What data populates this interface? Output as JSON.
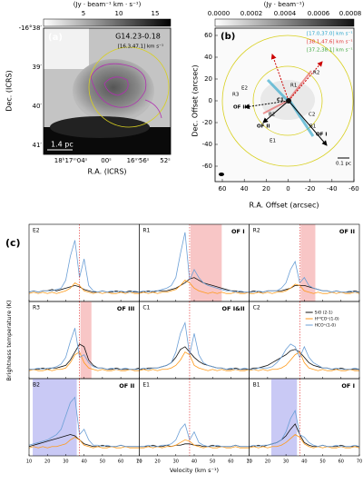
{
  "panel_a": {
    "label": "(a)",
    "colorbar_label": "(Jy · beam⁻¹ km · s⁻¹)",
    "colorbar_ticks": [
      "5",
      "10",
      "15"
    ],
    "source": "G14.23-0.18",
    "range": "[16.3,47.1] km s⁻¹",
    "scale": "1.4 pc",
    "ylabel": "Dec. (ICRS)",
    "xlabel": "R.A. (ICRS)",
    "yticks": [
      "-16°38′",
      "39′",
      "40′",
      "41′"
    ],
    "xticks": [
      "18ʰ17ᵐ04ˢ",
      "00ˢ",
      "16ᵐ56ˢ",
      "52ˢ"
    ]
  },
  "panel_b": {
    "label": "(b)",
    "colorbar_label": "(Jy · beam⁻¹)",
    "colorbar_ticks": [
      "0.0000",
      "0.0002",
      "0.0004",
      "0.0006",
      "0.0008"
    ],
    "legend": [
      {
        "text": "[17.0,37.0] km s⁻¹",
        "color": "#1fa0c8"
      },
      {
        "text": "[38.1,47.6] km s⁻¹",
        "color": "#e03030"
      },
      {
        "text": "[37.2,38.1] km s⁻¹",
        "color": "#3aa53a"
      }
    ],
    "ylabel": "Dec. Offset (arcsec)",
    "xlabel": "R.A. Offset (arcsec)",
    "xticks": [
      "60",
      "40",
      "20",
      "0",
      "-20",
      "-40",
      "-60"
    ],
    "yticks": [
      "60",
      "40",
      "20",
      "0",
      "-20",
      "-40",
      "-60"
    ],
    "sources": [
      "E2",
      "R1",
      "R2",
      "R3",
      "C1",
      "C2",
      "B2",
      "B1",
      "E1"
    ],
    "outflows": [
      "OF I",
      "OF II",
      "OF III"
    ],
    "scale": "0.1 pc"
  },
  "panel_c": {
    "label": "(c)",
    "ylabel": "Brightness temperature (K)",
    "xlabel": "Velocity (km s⁻¹)",
    "x": [
      10,
      12.5,
      15,
      17.5,
      20,
      22.5,
      25,
      27.5,
      30,
      32.5,
      35,
      37.5,
      40,
      42.5,
      45,
      47.5,
      50,
      52.5,
      55,
      57.5,
      60,
      62.5,
      65,
      67.5,
      70
    ],
    "xlim": [
      10,
      70
    ],
    "xticks": [
      10,
      20,
      30,
      40,
      50,
      60,
      70
    ],
    "ylim": [
      -0.3,
      2.6
    ],
    "vsys": 37.5,
    "series": [
      {
        "name": "SiO (2-1)",
        "color": "#111111"
      },
      {
        "name": "H¹³CO⁺(1-0)",
        "color": "#ff9a1a"
      },
      {
        "name": "HCO⁺(1-0)",
        "color": "#6b9fd6"
      }
    ],
    "panels": [
      {
        "name": "E2",
        "spectra": [
          [
            0.05,
            0.1,
            0.05,
            0.1,
            0.1,
            0.15,
            0.1,
            0.15,
            0.2,
            0.25,
            0.3,
            0.25,
            0.15,
            0.1,
            0.05,
            0.05,
            0.1,
            0.05,
            0.05,
            0.1,
            0.05,
            0.05,
            0.1,
            0.05,
            0.05
          ],
          [
            0,
            0.05,
            0,
            0.05,
            0,
            0.05,
            0,
            0.05,
            0.1,
            0.2,
            0.4,
            0.3,
            0.1,
            0.05,
            0,
            0.05,
            0,
            0.05,
            0,
            0,
            0.05,
            0,
            0.05,
            0,
            0
          ],
          [
            0.05,
            0.1,
            0.05,
            0.1,
            0.1,
            0.1,
            0.15,
            0.2,
            0.5,
            1.4,
            2.0,
            0.6,
            1.3,
            0.3,
            0.1,
            0.05,
            0.1,
            0.05,
            0.1,
            0.05,
            0.1,
            0.05,
            0.05,
            0.1,
            0.05
          ]
        ]
      },
      {
        "name": "R1",
        "outflow": "OF I",
        "shade": [
          38,
          55
        ],
        "shade_color": "#f6b8b8",
        "spectra": [
          [
            0.05,
            0.05,
            0.1,
            0.05,
            0.1,
            0.1,
            0.1,
            0.15,
            0.2,
            0.3,
            0.4,
            0.55,
            0.6,
            0.5,
            0.4,
            0.35,
            0.3,
            0.25,
            0.2,
            0.15,
            0.1,
            0.1,
            0.05,
            0.05,
            0.05
          ],
          [
            0,
            0.05,
            0,
            0.05,
            0,
            0.05,
            0.05,
            0.1,
            0.15,
            0.3,
            0.5,
            0.4,
            0.2,
            0.1,
            0.05,
            0,
            0.05,
            0,
            0.05,
            0,
            0,
            0.05,
            0,
            0,
            0.05
          ],
          [
            0.05,
            0.1,
            0.05,
            0.1,
            0.1,
            0.15,
            0.2,
            0.3,
            0.6,
            1.5,
            2.3,
            0.5,
            0.9,
            0.6,
            0.4,
            0.3,
            0.25,
            0.2,
            0.15,
            0.1,
            0.1,
            0.05,
            0.1,
            0.05,
            0.05
          ]
        ]
      },
      {
        "name": "R2",
        "outflow": "OF II",
        "shade": [
          38,
          46
        ],
        "shade_color": "#f6b8b8",
        "spectra": [
          [
            0.05,
            0.1,
            0.05,
            0.05,
            0.1,
            0.1,
            0.1,
            0.1,
            0.15,
            0.2,
            0.3,
            0.3,
            0.3,
            0.25,
            0.2,
            0.15,
            0.1,
            0.1,
            0.05,
            0.1,
            0.05,
            0.05,
            0.05,
            0.1,
            0.05
          ],
          [
            0,
            0,
            0.05,
            0,
            0.05,
            0,
            0.05,
            0.05,
            0.1,
            0.2,
            0.35,
            0.3,
            0.1,
            0.05,
            0,
            0.05,
            0,
            0,
            0.05,
            0,
            0.05,
            0,
            0,
            0.05,
            0
          ],
          [
            0.05,
            0.05,
            0.1,
            0.05,
            0.1,
            0.1,
            0.1,
            0.2,
            0.4,
            0.9,
            1.2,
            0.4,
            0.6,
            0.3,
            0.2,
            0.15,
            0.1,
            0.1,
            0.05,
            0.1,
            0.05,
            0.05,
            0.1,
            0.05,
            0.05
          ]
        ]
      },
      {
        "name": "R3",
        "outflow": "OF III",
        "shade": [
          38,
          44
        ],
        "shade_color": "#f6b8b8",
        "spectra": [
          [
            0.05,
            0.05,
            0.05,
            0.1,
            0.05,
            0.1,
            0.1,
            0.15,
            0.2,
            0.4,
            0.7,
            1.0,
            0.9,
            0.4,
            0.2,
            0.1,
            0.1,
            0.05,
            0.05,
            0.1,
            0.05,
            0.05,
            0.05,
            0.05,
            0.1
          ],
          [
            0,
            0.05,
            0,
            0,
            0.05,
            0,
            0.05,
            0.05,
            0.1,
            0.3,
            0.6,
            0.7,
            0.3,
            0.1,
            0.05,
            0,
            0.05,
            0,
            0,
            0.05,
            0,
            0,
            0.05,
            0,
            0
          ],
          [
            0.05,
            0.05,
            0.1,
            0.05,
            0.1,
            0.1,
            0.15,
            0.25,
            0.5,
            1.1,
            1.6,
            0.5,
            0.6,
            0.3,
            0.15,
            0.1,
            0.1,
            0.05,
            0.1,
            0.05,
            0.05,
            0.1,
            0.05,
            0.05,
            0.05
          ]
        ]
      },
      {
        "name": "C1",
        "outflow": "OF I&II",
        "spectra": [
          [
            0.05,
            0.05,
            0.1,
            0.1,
            0.1,
            0.15,
            0.2,
            0.3,
            0.5,
            0.8,
            0.9,
            0.7,
            0.5,
            0.35,
            0.25,
            0.2,
            0.15,
            0.1,
            0.1,
            0.05,
            0.05,
            0.1,
            0.05,
            0.05,
            0.05
          ],
          [
            0,
            0.05,
            0,
            0.05,
            0,
            0.05,
            0.05,
            0.1,
            0.2,
            0.4,
            0.7,
            0.6,
            0.2,
            0.1,
            0.05,
            0,
            0.05,
            0,
            0.05,
            0,
            0,
            0.05,
            0,
            0,
            0.05
          ],
          [
            0.05,
            0.1,
            0.05,
            0.1,
            0.1,
            0.15,
            0.2,
            0.3,
            0.7,
            1.4,
            1.8,
            0.6,
            1.4,
            0.6,
            0.3,
            0.2,
            0.15,
            0.1,
            0.1,
            0.05,
            0.1,
            0.05,
            0.05,
            0.1,
            0.05
          ]
        ]
      },
      {
        "name": "C2",
        "spectra": [
          [
            0.05,
            0.1,
            0.1,
            0.15,
            0.2,
            0.3,
            0.4,
            0.5,
            0.6,
            0.75,
            0.8,
            0.7,
            0.5,
            0.3,
            0.2,
            0.15,
            0.1,
            0.1,
            0.05,
            0.05,
            0.1,
            0.05,
            0.05,
            0.05,
            0.05
          ],
          [
            0,
            0.05,
            0,
            0.05,
            0,
            0.05,
            0.05,
            0.1,
            0.2,
            0.4,
            0.6,
            0.7,
            0.3,
            0.1,
            0.05,
            0,
            0.05,
            0,
            0,
            0.05,
            0,
            0,
            0.05,
            0,
            0
          ],
          [
            0.05,
            0.05,
            0.1,
            0.1,
            0.1,
            0.15,
            0.3,
            0.5,
            0.8,
            1.0,
            0.9,
            0.5,
            0.9,
            0.5,
            0.3,
            0.2,
            0.1,
            0.1,
            0.05,
            0.1,
            0.05,
            0.05,
            0.05,
            0.1,
            0.05
          ]
        ]
      },
      {
        "name": "B2",
        "outflow": "OF II",
        "shade": [
          12,
          36
        ],
        "shade_color": "#bcbcf2",
        "spectra": [
          [
            0.05,
            0.1,
            0.15,
            0.2,
            0.25,
            0.3,
            0.35,
            0.4,
            0.45,
            0.5,
            0.45,
            0.3,
            0.15,
            0.1,
            0.05,
            0.05,
            0.1,
            0.05,
            0.05,
            0.05,
            0.1,
            0.05,
            0.05,
            0.05,
            0.05
          ],
          [
            0,
            0.05,
            0,
            0.05,
            0,
            0.05,
            0.05,
            0.1,
            0.15,
            0.3,
            0.4,
            0.3,
            0.1,
            0.05,
            0,
            0.05,
            0,
            0,
            0.05,
            0,
            0,
            0.05,
            0,
            0,
            0
          ],
          [
            0.1,
            0.15,
            0.2,
            0.25,
            0.3,
            0.4,
            0.5,
            0.7,
            1.2,
            1.7,
            1.9,
            0.5,
            0.7,
            0.3,
            0.1,
            0.1,
            0.05,
            0.1,
            0.05,
            0.05,
            0.1,
            0.05,
            0.05,
            0.05,
            0.05
          ]
        ]
      },
      {
        "name": "E1",
        "spectra": [
          [
            0.05,
            0.05,
            0.05,
            0.1,
            0.05,
            0.05,
            0.1,
            0.05,
            0.1,
            0.1,
            0.15,
            0.15,
            0.1,
            0.1,
            0.05,
            0.05,
            0.1,
            0.05,
            0.05,
            0.05,
            0.05,
            0.1,
            0.05,
            0.05,
            0.05
          ],
          [
            0,
            0,
            0.05,
            0,
            0.05,
            0,
            0.05,
            0.05,
            0.1,
            0.2,
            0.3,
            0.25,
            0.1,
            0.05,
            0,
            0.05,
            0,
            0,
            0.05,
            0,
            0,
            0.05,
            0,
            0,
            0
          ],
          [
            0.05,
            0.05,
            0.1,
            0.05,
            0.05,
            0.1,
            0.1,
            0.15,
            0.3,
            0.7,
            0.9,
            0.3,
            0.6,
            0.2,
            0.1,
            0.05,
            0.05,
            0.1,
            0.05,
            0.05,
            0.05,
            0.1,
            0.05,
            0.05,
            0.05
          ]
        ]
      },
      {
        "name": "B1",
        "outflow": "OF I",
        "shade": [
          22,
          36
        ],
        "shade_color": "#bcbcf2",
        "spectra": [
          [
            0.05,
            0.05,
            0.1,
            0.05,
            0.1,
            0.15,
            0.2,
            0.3,
            0.45,
            0.7,
            0.9,
            0.5,
            0.2,
            0.1,
            0.05,
            0.05,
            0.1,
            0.05,
            0.05,
            0.05,
            0.1,
            0.05,
            0.05,
            0.05,
            0.05
          ],
          [
            0,
            0.05,
            0,
            0.05,
            0,
            0.05,
            0.05,
            0.1,
            0.2,
            0.35,
            0.5,
            0.4,
            0.15,
            0.05,
            0,
            0.05,
            0,
            0.05,
            0,
            0,
            0.05,
            0,
            0,
            0.05,
            0
          ],
          [
            0.05,
            0.1,
            0.05,
            0.1,
            0.1,
            0.15,
            0.2,
            0.3,
            0.6,
            1.1,
            1.4,
            0.5,
            0.4,
            0.2,
            0.1,
            0.05,
            0.1,
            0.05,
            0.05,
            0.1,
            0.05,
            0.05,
            0.05,
            0.1,
            0.05
          ]
        ]
      }
    ]
  }
}
